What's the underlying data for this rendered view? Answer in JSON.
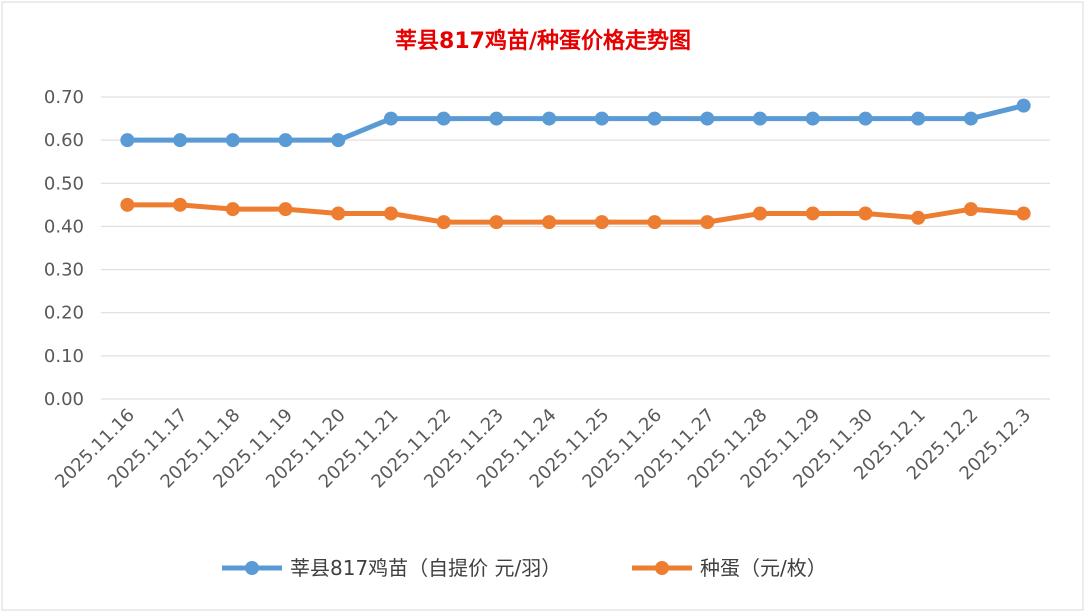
{
  "colors": {
    "series1": "#5B9BD5",
    "series2": "#ED7D31",
    "title": "#E60000",
    "grid": "#D9D9D9",
    "frame": "#D9D9D9",
    "tick": "#595959"
  },
  "chart_data": {
    "type": "line",
    "title": "莘县817鸡苗/种蛋价格走势图",
    "xlabel": "",
    "ylabel": "",
    "ylim": [
      0,
      0.7
    ],
    "yticks": [
      "0.00",
      "0.10",
      "0.20",
      "0.30",
      "0.40",
      "0.50",
      "0.60",
      "0.70"
    ],
    "grid": true,
    "legend_position": "bottom",
    "categories": [
      "2025.11.16",
      "2025.11.17",
      "2025.11.18",
      "2025.11.19",
      "2025.11.20",
      "2025.11.21",
      "2025.11.22",
      "2025.11.23",
      "2025.11.24",
      "2025.11.25",
      "2025.11.26",
      "2025.11.27",
      "2025.11.28",
      "2025.11.29",
      "2025.11.30",
      "2025.12.1",
      "2025.12.2",
      "2025.12.3"
    ],
    "series": [
      {
        "name": "莘县817鸡苗（自提价 元/羽）",
        "values": [
          0.6,
          0.6,
          0.6,
          0.6,
          0.6,
          0.65,
          0.65,
          0.65,
          0.65,
          0.65,
          0.65,
          0.65,
          0.65,
          0.65,
          0.65,
          0.65,
          0.65,
          0.68
        ]
      },
      {
        "name": "种蛋（元/枚）",
        "values": [
          0.45,
          0.45,
          0.44,
          0.44,
          0.43,
          0.43,
          0.41,
          0.41,
          0.41,
          0.41,
          0.41,
          0.41,
          0.43,
          0.43,
          0.43,
          0.42,
          0.44,
          0.43
        ]
      }
    ]
  }
}
